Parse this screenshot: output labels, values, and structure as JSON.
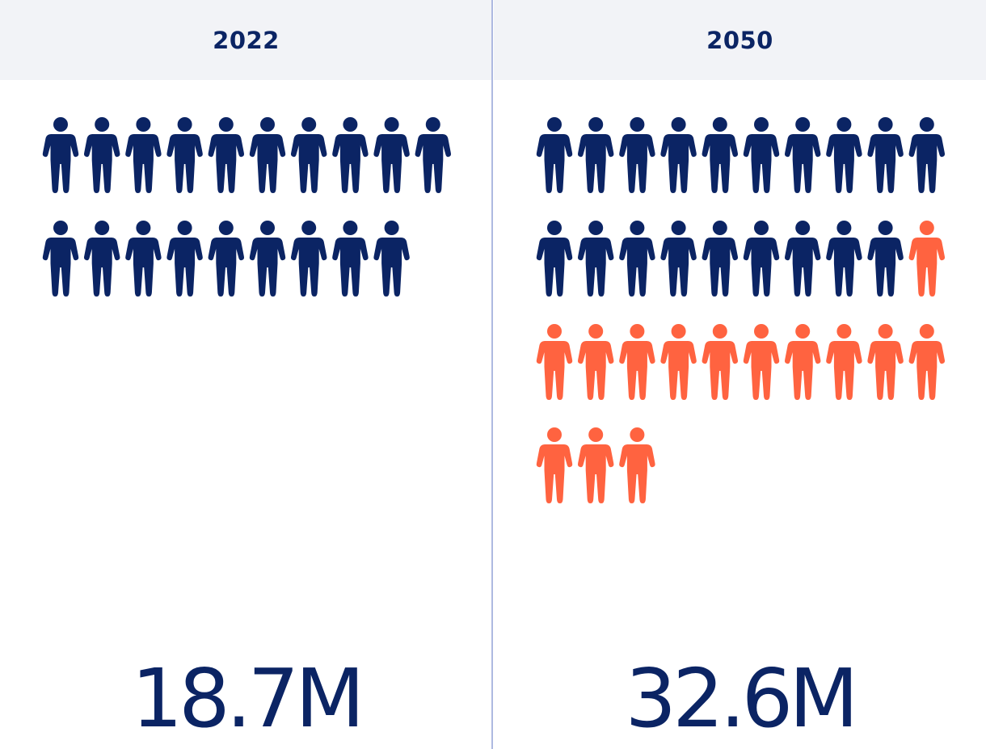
{
  "colors": {
    "existing": "#0b2464",
    "added": "#ff6340",
    "header_bg": "#f2f3f7",
    "divider": "#aeb9e1"
  },
  "icon_name": "person-icon",
  "chart_data": {
    "type": "pictogram",
    "unit": "1 person icon = 1M",
    "panels": [
      {
        "year": "2022",
        "total_label": "18.7M",
        "existing_icons": 19,
        "added_icons": 0
      },
      {
        "year": "2050",
        "total_label": "32.6M",
        "existing_icons": 19,
        "added_icons": 14
      }
    ]
  }
}
